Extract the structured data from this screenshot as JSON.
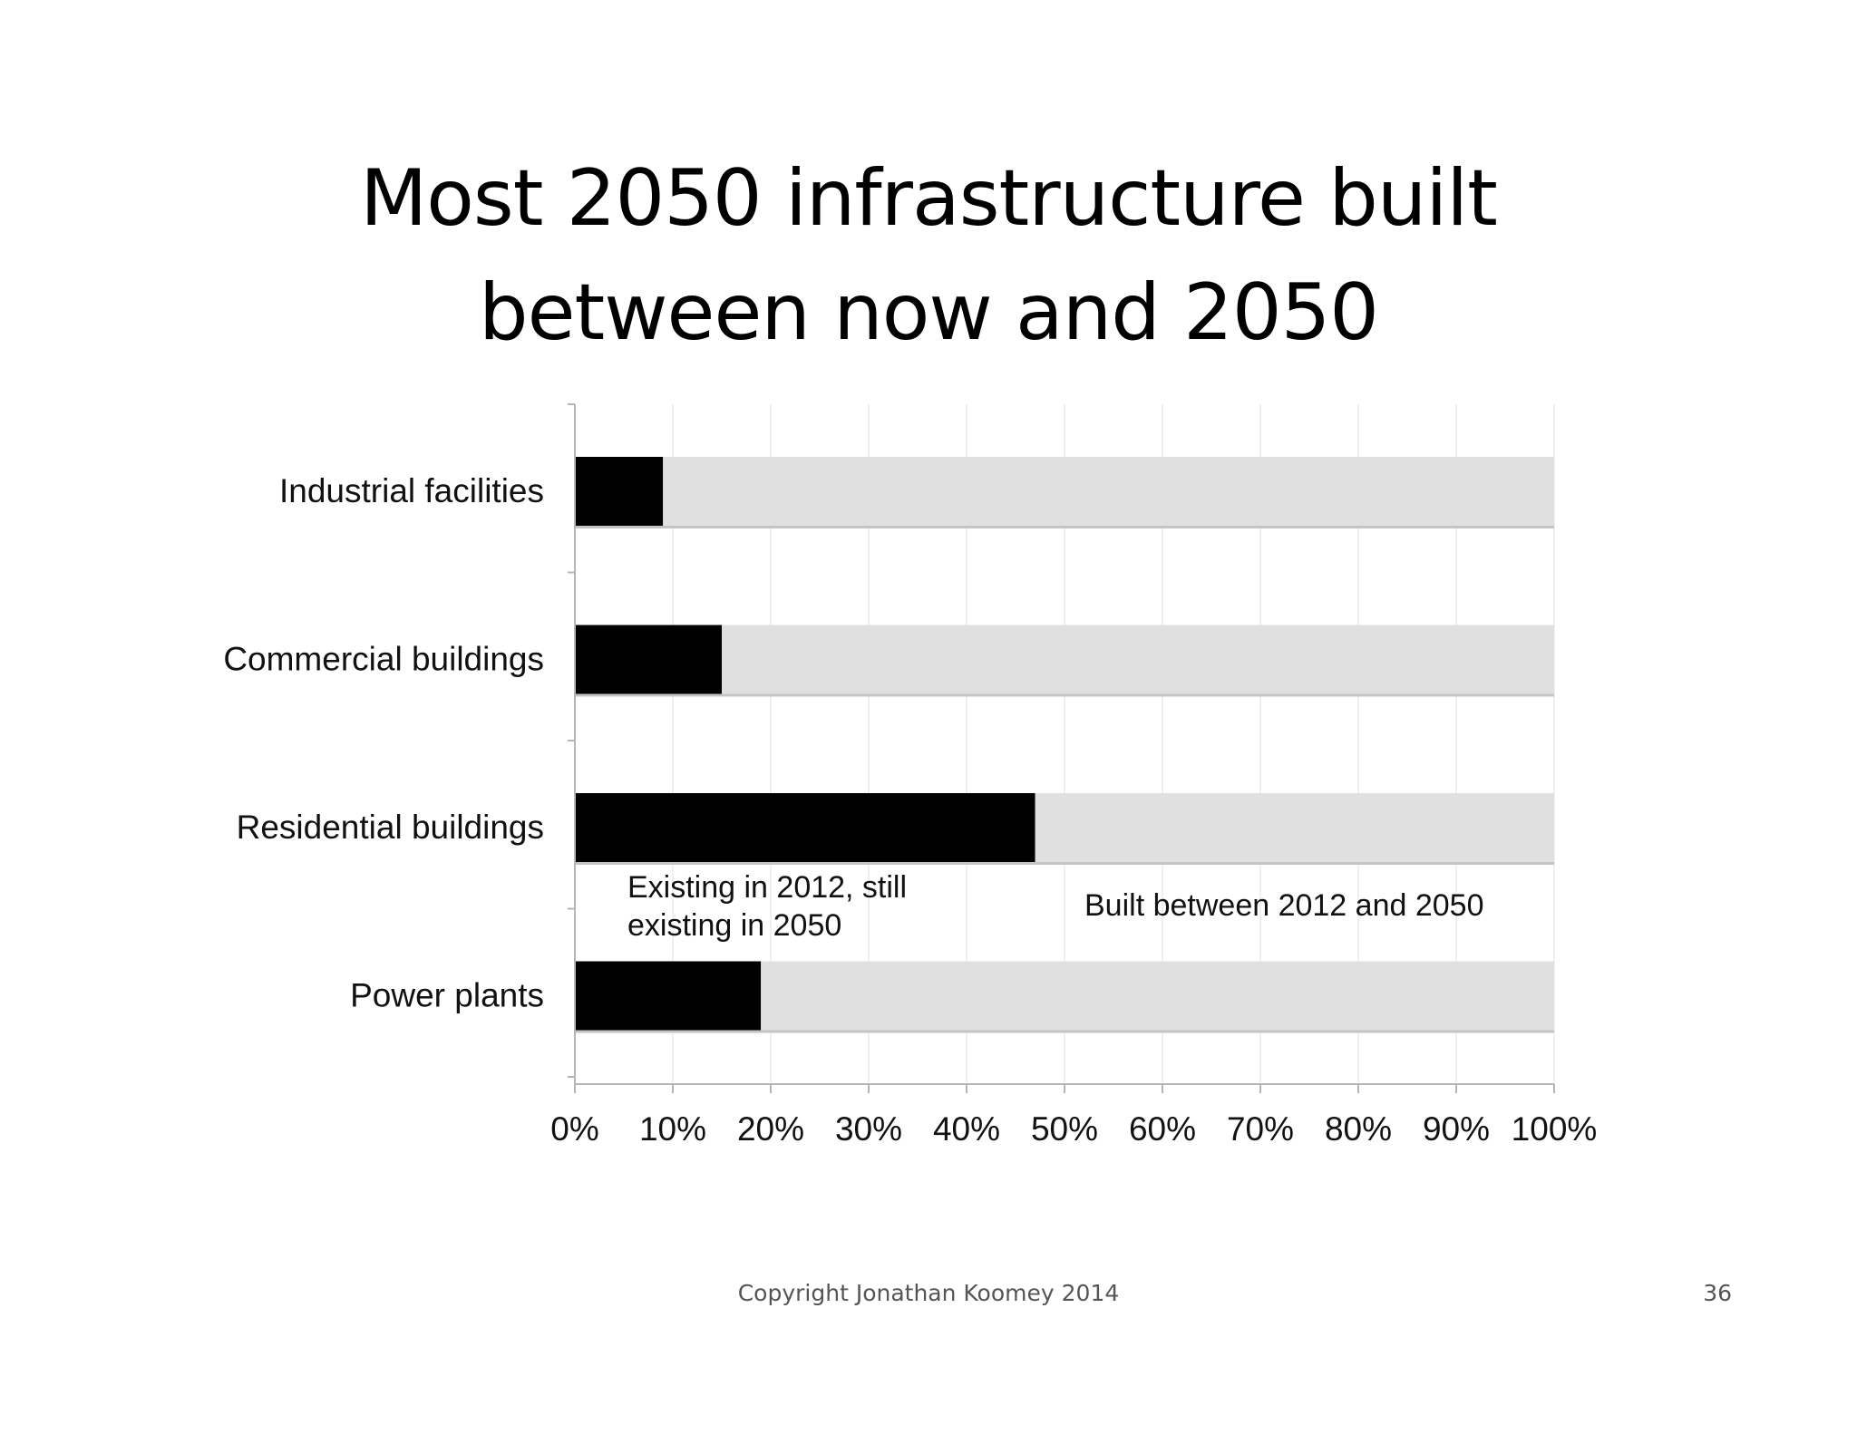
{
  "slide": {
    "title_line1": "Most 2050 infrastructure built",
    "title_line2": "between now and 2050",
    "footer": "Copyright Jonathan Koomey 2014",
    "page_number": "36"
  },
  "chart_data": {
    "type": "bar",
    "orientation": "horizontal",
    "stacked": true,
    "categories": [
      "Industrial facilities",
      "Commercial buildings",
      "Residential buildings",
      "Power plants"
    ],
    "series": [
      {
        "name": "Existing in 2012, still existing in 2050",
        "values": [
          9,
          15,
          47,
          19
        ],
        "color": "#000000"
      },
      {
        "name": "Built between 2012 and 2050",
        "values": [
          91,
          85,
          53,
          81
        ],
        "color": "#e0e0e0"
      }
    ],
    "xlim": [
      0,
      100
    ],
    "x_ticks": [
      "0%",
      "10%",
      "20%",
      "30%",
      "40%",
      "50%",
      "60%",
      "70%",
      "80%",
      "90%",
      "100%"
    ],
    "grid": "vertical",
    "annotations": [
      {
        "lines": [
          "Existing in 2012, still",
          "existing in 2050"
        ]
      },
      {
        "lines": [
          "Built between 2012 and 2050"
        ]
      }
    ],
    "title": "",
    "xlabel": "",
    "ylabel": ""
  }
}
